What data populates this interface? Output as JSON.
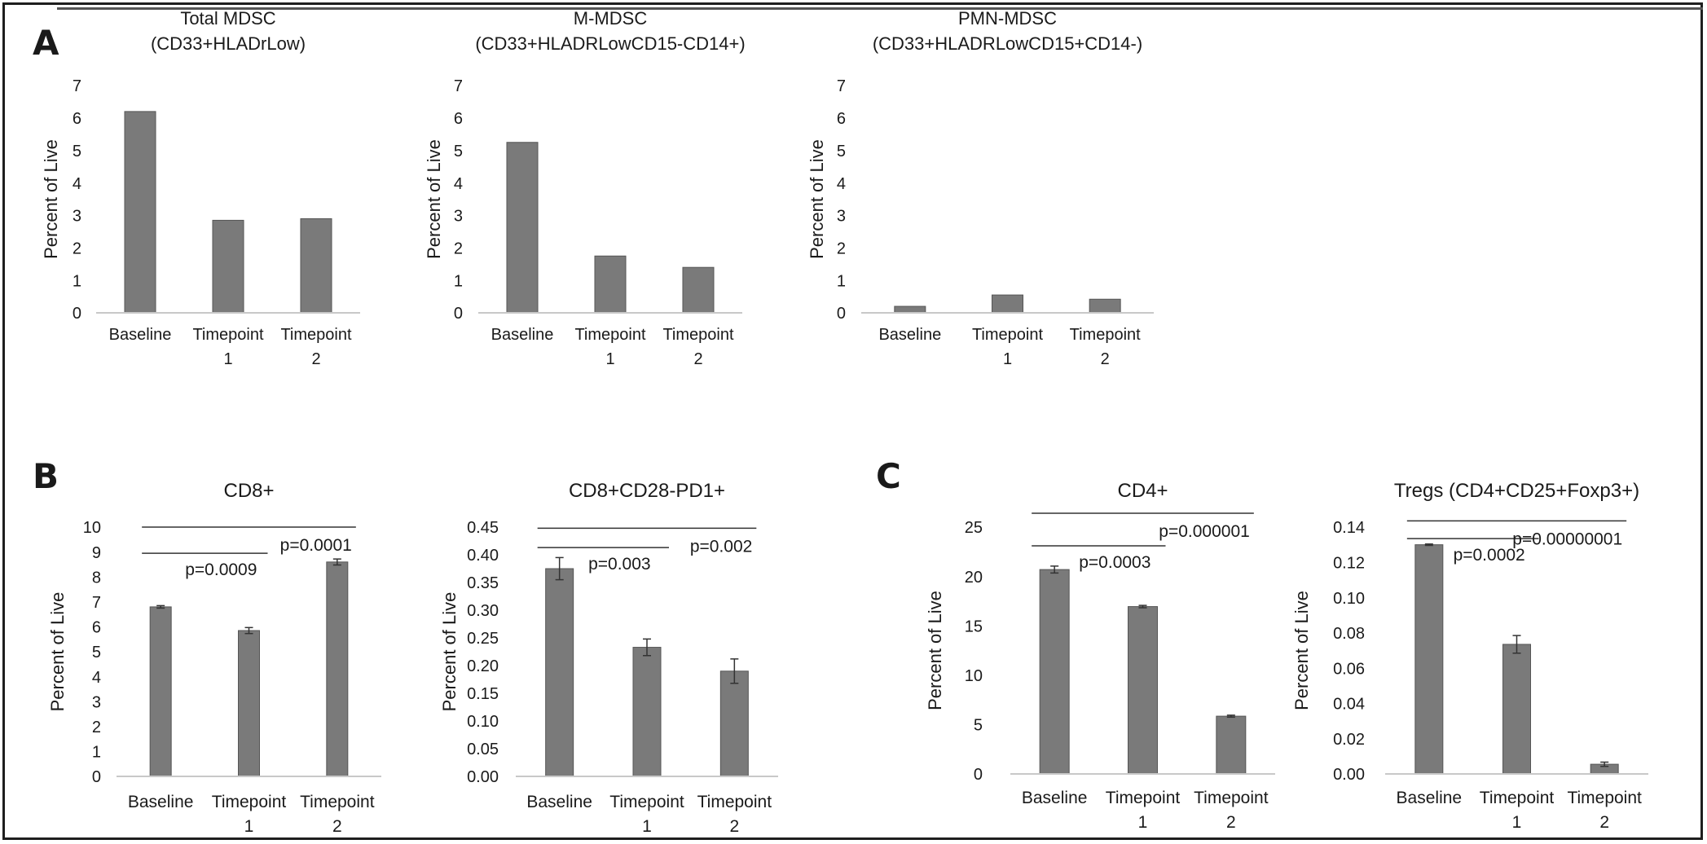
{
  "panel_labels": [
    "A",
    "B",
    "C"
  ],
  "colors": {
    "bar": "#7a7a7a",
    "bar_edge": "#555555",
    "axis": "#c8c8c8",
    "text": "#1a1a1a",
    "annotation_line": "#333333"
  },
  "chart_data": [
    {
      "type": "bar",
      "title": "Total MDSC",
      "subtitle": "(CD33+HLADrLow)",
      "ylabel": "Percent of Live",
      "categories": [
        [
          "Baseline"
        ],
        [
          "Timepoint",
          "1"
        ],
        [
          "Timepoint",
          "2"
        ]
      ],
      "values": [
        6.2,
        2.85,
        2.9
      ],
      "ylim": [
        0,
        7
      ],
      "yticks": [
        "0",
        "1",
        "2",
        "3",
        "4",
        "5",
        "6",
        "7"
      ],
      "error_bars": false
    },
    {
      "type": "bar",
      "title": "M-MDSC",
      "subtitle": "(CD33+HLADRLowCD15-CD14+)",
      "ylabel": "Percent of Live",
      "categories": [
        [
          "Baseline"
        ],
        [
          "Timepoint",
          "1"
        ],
        [
          "Timepoint",
          "2"
        ]
      ],
      "values": [
        5.25,
        1.75,
        1.4
      ],
      "ylim": [
        0,
        7
      ],
      "yticks": [
        "0",
        "1",
        "2",
        "3",
        "4",
        "5",
        "6",
        "7"
      ],
      "error_bars": false
    },
    {
      "type": "bar",
      "title": "PMN-MDSC",
      "subtitle": "(CD33+HLADRLowCD15+CD14-)",
      "ylabel": "Percent of Live",
      "categories": [
        [
          "Baseline"
        ],
        [
          "Timepoint",
          "1"
        ],
        [
          "Timepoint",
          "2"
        ]
      ],
      "values": [
        0.2,
        0.55,
        0.42
      ],
      "ylim": [
        0,
        7
      ],
      "yticks": [
        "0",
        "1",
        "2",
        "3",
        "4",
        "5",
        "6",
        "7"
      ],
      "error_bars": false
    },
    {
      "type": "bar",
      "title": "CD8+",
      "ylabel": "Percent of Live",
      "categories": [
        [
          "Baseline"
        ],
        [
          "Timepoint",
          "1"
        ],
        [
          "Timepoint",
          "2"
        ]
      ],
      "values": [
        6.8,
        5.85,
        8.6
      ],
      "errors": [
        0.05,
        0.12,
        0.12
      ],
      "ylim": [
        0,
        10
      ],
      "yticks": [
        "0",
        "1",
        "2",
        "3",
        "4",
        "5",
        "6",
        "7",
        "8",
        "9",
        "10"
      ],
      "comparisons": [
        {
          "from": 0,
          "to": 1,
          "y": 8.95,
          "label": "p=0.0009"
        },
        {
          "from": 0,
          "to": 2,
          "y": 10.0,
          "label": "p=0.0001"
        }
      ]
    },
    {
      "type": "bar",
      "title": "CD8+CD28-PD1+",
      "ylabel": "Percent of Live",
      "categories": [
        [
          "Baseline"
        ],
        [
          "Timepoint",
          "1"
        ],
        [
          "Timepoint",
          "2"
        ]
      ],
      "values": [
        0.375,
        0.233,
        0.19
      ],
      "errors": [
        0.02,
        0.015,
        0.022
      ],
      "ylim": [
        0,
        0.45
      ],
      "yticks": [
        "0.00",
        "0.05",
        "0.10",
        "0.15",
        "0.20",
        "0.25",
        "0.30",
        "0.35",
        "0.40",
        "0.45"
      ],
      "comparisons": [
        {
          "from": 0,
          "to": 1,
          "y": 0.413,
          "label": "p=0.003"
        },
        {
          "from": 0,
          "to": 2,
          "y": 0.448,
          "label": "p=0.002"
        }
      ]
    },
    {
      "type": "bar",
      "title": "CD4+",
      "ylabel": "Percent of Live",
      "categories": [
        [
          "Baseline"
        ],
        [
          "Timepoint",
          "1"
        ],
        [
          "Timepoint",
          "2"
        ]
      ],
      "values": [
        20.7,
        16.95,
        5.85
      ],
      "errors": [
        0.35,
        0.12,
        0.1
      ],
      "ylim": [
        0,
        25
      ],
      "yticks": [
        "0",
        "5",
        "10",
        "15",
        "20",
        "25"
      ],
      "comparisons": [
        {
          "from": 0,
          "to": 1,
          "y": 23.1,
          "label": "p=0.0003"
        },
        {
          "from": 0,
          "to": 2,
          "y": 26.4,
          "label": "p=0.000001"
        }
      ]
    },
    {
      "type": "bar",
      "title": "Tregs (CD4+CD25+Foxp3+)",
      "ylabel": "Percent of Live",
      "categories": [
        [
          "Baseline"
        ],
        [
          "Timepoint",
          "1"
        ],
        [
          "Timepoint",
          "2"
        ]
      ],
      "values": [
        0.13,
        0.0735,
        0.0055
      ],
      "errors": [
        0.0004,
        0.005,
        0.0012
      ],
      "ylim": [
        0,
        0.14
      ],
      "yticks": [
        "0.00",
        "0.02",
        "0.04",
        "0.06",
        "0.08",
        "0.10",
        "0.12",
        "0.14"
      ],
      "comparisons": [
        {
          "from": 0,
          "to": 1,
          "y": 0.1335,
          "label": "p=0.0002"
        },
        {
          "from": 0,
          "to": 2,
          "y": 0.1435,
          "label": "p=0.00000001"
        }
      ]
    }
  ]
}
